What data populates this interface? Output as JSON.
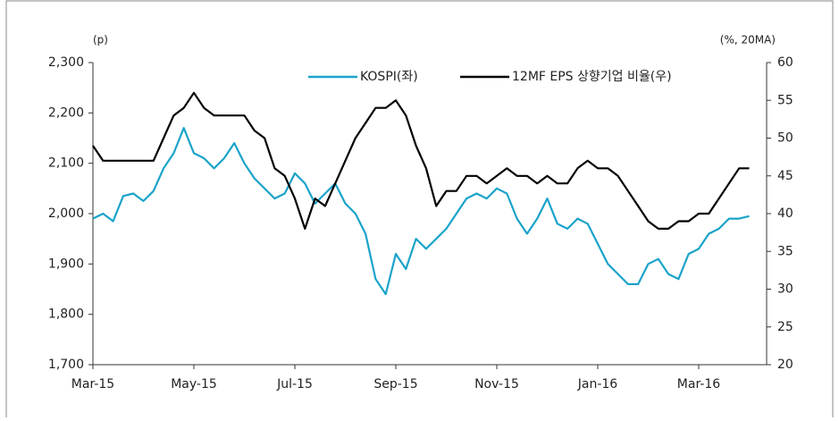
{
  "chart_data": {
    "type": "line",
    "y_label": "(p)",
    "y2_label": "(%, 20MA)",
    "categories": [
      "Mar-15",
      null,
      null,
      null,
      null,
      null,
      null,
      null,
      null,
      null,
      "May-15",
      null,
      null,
      null,
      null,
      null,
      null,
      null,
      null,
      null,
      "Jul-15",
      null,
      null,
      null,
      null,
      null,
      null,
      null,
      null,
      null,
      "Sep-15",
      null,
      null,
      null,
      null,
      null,
      null,
      null,
      null,
      null,
      "Nov-15",
      null,
      null,
      null,
      null,
      null,
      null,
      null,
      null,
      null,
      "Jan-16",
      null,
      null,
      null,
      null,
      null,
      null,
      null,
      null,
      null,
      "Mar-16",
      null,
      null,
      null,
      null,
      null
    ],
    "series": [
      {
        "name": "KOSPI(좌)",
        "color": "#1aa3c9",
        "axis": "y",
        "values": [
          1990,
          2000,
          1985,
          2035,
          2040,
          2025,
          2045,
          2090,
          2120,
          2170,
          2120,
          2110,
          2090,
          2110,
          2140,
          2100,
          2070,
          2050,
          2030,
          2040,
          2080,
          2060,
          2020,
          2040,
          2060,
          2020,
          2000,
          1960,
          1870,
          1840,
          1920,
          1890,
          1950,
          1930,
          1950,
          1970,
          2000,
          2030,
          2040,
          2030,
          2050,
          2040,
          1990,
          1960,
          1990,
          2030,
          1980,
          1970,
          1990,
          1980,
          1940,
          1900,
          1880,
          1860,
          1860,
          1900,
          1910,
          1880,
          1870,
          1920,
          1930,
          1960,
          1970,
          1990,
          1990,
          1995
        ]
      },
      {
        "name": "12MF EPS 상향기업 비율(우)",
        "color": "#000000",
        "axis": "y2",
        "values": [
          49,
          47,
          47,
          47,
          47,
          47,
          47,
          50,
          53,
          54,
          56,
          54,
          53,
          53,
          53,
          53,
          51,
          50,
          46,
          45,
          42,
          38,
          42,
          41,
          44,
          47,
          50,
          52,
          54,
          54,
          55,
          53,
          49,
          46,
          41,
          43,
          43,
          45,
          45,
          44,
          45,
          46,
          45,
          45,
          44,
          45,
          44,
          44,
          46,
          47,
          46,
          46,
          45,
          43,
          41,
          39,
          38,
          38,
          39,
          39,
          40,
          40,
          42,
          44,
          46,
          46
        ]
      }
    ],
    "ylim": [
      1700,
      2300
    ],
    "yticks": [
      {
        "value": 1700,
        "label": "1,700"
      },
      {
        "value": 1800,
        "label": "1,800"
      },
      {
        "value": 1900,
        "label": "1,900"
      },
      {
        "value": 2000,
        "label": "2,000"
      },
      {
        "value": 2100,
        "label": "2,100"
      },
      {
        "value": 2200,
        "label": "2,200"
      },
      {
        "value": 2300,
        "label": "2,300"
      }
    ],
    "y2lim": [
      20,
      60
    ],
    "y2ticks": [
      20,
      25,
      30,
      35,
      40,
      45,
      50,
      55,
      60
    ],
    "grid": false,
    "legend": "top"
  }
}
